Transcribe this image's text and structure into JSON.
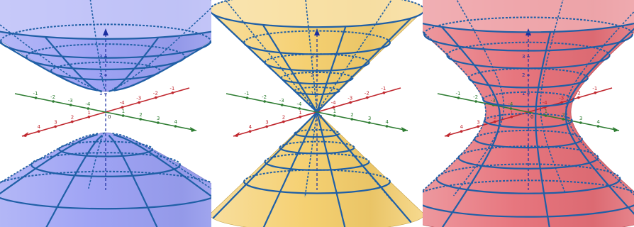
{
  "figure": {
    "panels": [
      {
        "id": "hyperboloid-two-sheets",
        "surface_color": "#8f95f2",
        "curve_color": "#1f5fa6",
        "ticks": {
          "x_neg": [
            "-4",
            "-3",
            "-2",
            "-1"
          ],
          "x_pos": [
            "1",
            "2",
            "3",
            "4"
          ],
          "y_neg": [
            "-4",
            "-3",
            "-2",
            "-1"
          ],
          "y_pos": [
            "1",
            "2",
            "3",
            "4"
          ],
          "z": [
            "1",
            "2",
            "3"
          ],
          "origin": "0"
        }
      },
      {
        "id": "double-cone",
        "surface_color": "#f3c85a",
        "curve_color": "#1f5fa6",
        "ticks": {
          "x_neg": [
            "-4",
            "-3",
            "-2",
            "-1"
          ],
          "x_pos": [
            "1",
            "2",
            "3",
            "4"
          ],
          "y_neg": [
            "-4",
            "-3",
            "-2",
            "-1"
          ],
          "y_pos": [
            "1",
            "2",
            "3",
            "4"
          ],
          "z": [
            "1",
            "2",
            "3"
          ],
          "origin": "0"
        }
      },
      {
        "id": "hyperboloid-one-sheet",
        "surface_color": "#e35f68",
        "curve_color": "#1f5fa6",
        "ticks": {
          "x_neg": [
            "-4",
            "-3",
            "-2",
            "-1"
          ],
          "x_pos": [
            "1",
            "2",
            "3",
            "4"
          ],
          "y_neg": [
            "-4",
            "-3",
            "-2",
            "-1"
          ],
          "y_pos": [
            "1",
            "2",
            "3",
            "4"
          ],
          "z": [
            "1",
            "2",
            "3"
          ],
          "origin": "0"
        }
      }
    ],
    "axis_colors": {
      "x": "#c0262d",
      "y": "#2e7d32",
      "z": "#1a2fa0"
    }
  }
}
